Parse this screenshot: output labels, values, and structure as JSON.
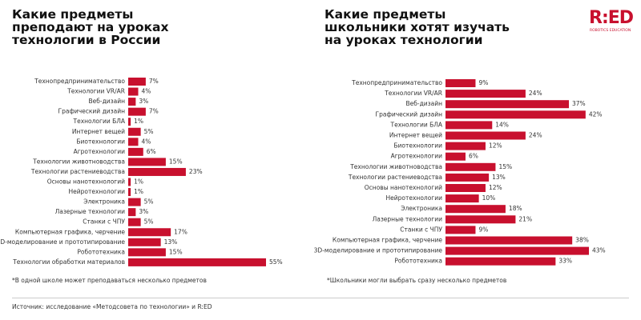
{
  "chart_data": [
    {
      "type": "bar",
      "orientation": "horizontal",
      "color": "#c8102e",
      "title": "Какие предметы\nпреподают на уроках\nтехнологии в России",
      "categories": [
        "Технопредпринимательство",
        "Технологии VR/AR",
        "Веб-дизайн",
        "Графический дизайн",
        "Технологии БЛА",
        "Интернет вещей",
        "Биотехнологии",
        "Агротехнологии",
        "Технологии животноводства",
        "Технологии растениеводства",
        "Основы нанотехнологий",
        "Нейротехнологии",
        "Электроника",
        "Лазерные технологии",
        "Станки с ЧПУ",
        "Компьютерная графика, черчение",
        "3D-моделирование и прототипирование",
        "Робототехника",
        "Технологии обработки материалов"
      ],
      "values": [
        7,
        4,
        3,
        7,
        1,
        5,
        4,
        6,
        15,
        23,
        1,
        1,
        5,
        3,
        5,
        17,
        13,
        15,
        55
      ],
      "value_labels": [
        "7%",
        "4%",
        "3%",
        "7%",
        "1%",
        "5%",
        "4%",
        "6%",
        "15%",
        "23%",
        "1%",
        "1%",
        "5%",
        "3%",
        "5%",
        "17%",
        "13%",
        "15%",
        "55%"
      ],
      "note": "*В одной школе может преподаваться несколько предметов"
    },
    {
      "type": "bar",
      "orientation": "horizontal",
      "color": "#c8102e",
      "title": "Какие предметы\nшкольники хотят изучать\nна уроках технологии",
      "categories": [
        "Технопредпринимательство",
        "Технологии VR/AR",
        "Веб-дизайн",
        "Графический дизайн",
        "Технологии БЛА",
        "Интернет вещей",
        "Биотехнологии",
        "Агротехнологии",
        "Технологии животноводства",
        "Технологии растениеводства",
        "Основы нанотехнологий",
        "Нейротехнологии",
        "Электроника",
        "Лазерные технологии",
        "Станки с ЧПУ",
        "Компьютерная графика, черчение",
        "3D-моделирование и прототипирование",
        "Робототехника"
      ],
      "values": [
        9,
        24,
        37,
        42,
        14,
        24,
        12,
        6,
        15,
        13,
        12,
        10,
        18,
        21,
        9,
        38,
        43,
        33
      ],
      "value_labels": [
        "9%",
        "24%",
        "37%",
        "42%",
        "14%",
        "24%",
        "12%",
        "6%",
        "15%",
        "13%",
        "12%",
        "10%",
        "18%",
        "21%",
        "9%",
        "38%",
        "43%",
        "33%"
      ],
      "note": "*Школьники могли выбрать сразу несколько предметов"
    }
  ],
  "logo": {
    "text": "R:ED",
    "subtitle": "ROBOTICS EDUCATION"
  },
  "source": "Источник: исследование «Методсовета по технологии» и R:ED"
}
